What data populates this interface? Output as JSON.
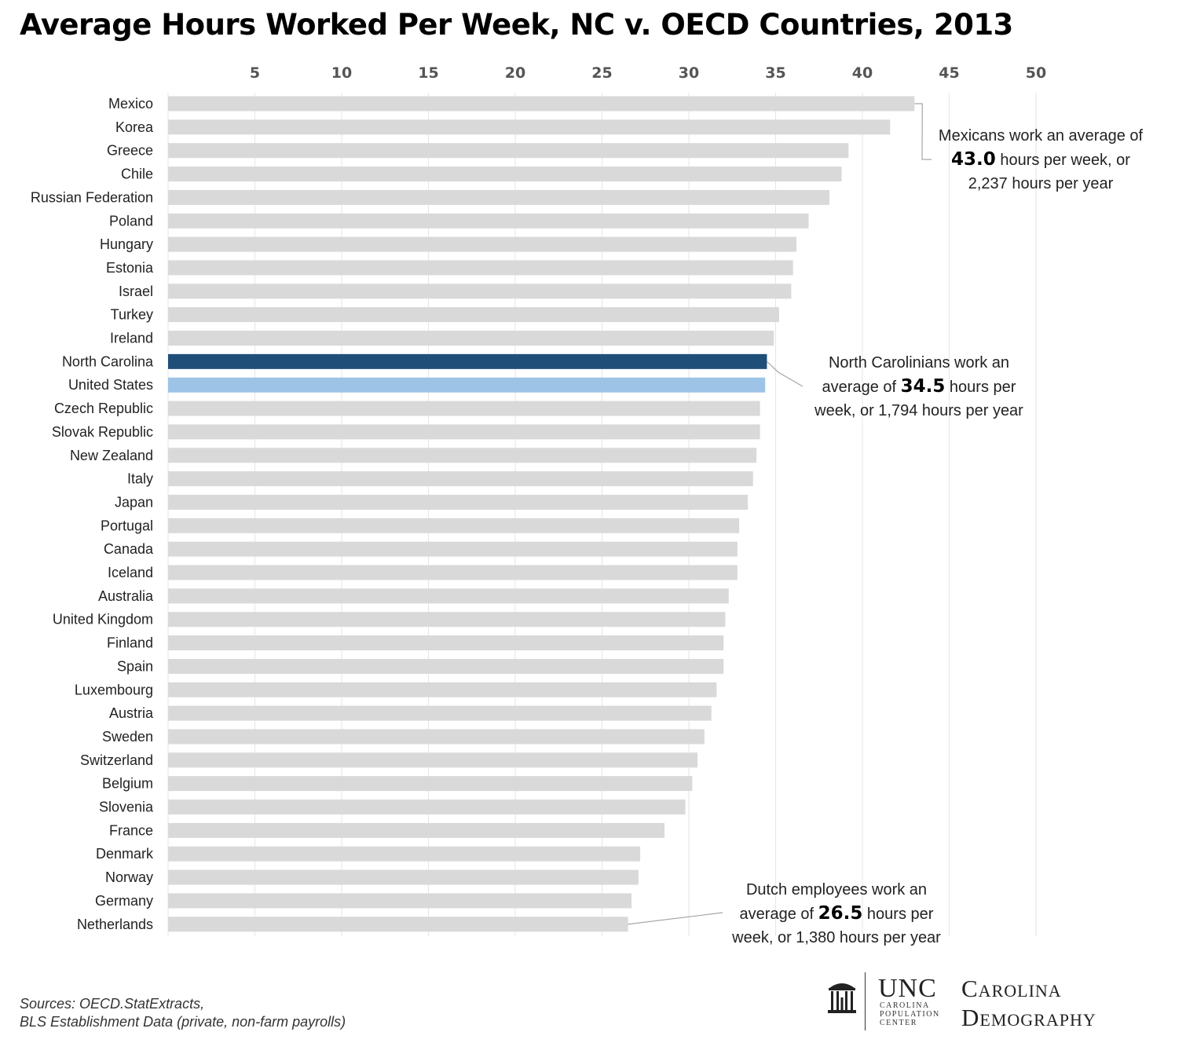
{
  "title": "Average Hours Worked Per Week, NC v. OECD Countries, 2013",
  "chart_data": {
    "type": "bar",
    "orientation": "horizontal",
    "title": "Average Hours Worked Per Week, NC v. OECD Countries, 2013",
    "x_ticks": [
      5,
      10,
      15,
      20,
      25,
      30,
      35,
      40,
      45,
      50
    ],
    "xlim": [
      0,
      50
    ],
    "x_axis_position": "top",
    "grid": "vertical",
    "categories": [
      "Mexico",
      "Korea",
      "Greece",
      "Chile",
      "Russian Federation",
      "Poland",
      "Hungary",
      "Estonia",
      "Israel",
      "Turkey",
      "Ireland",
      "North Carolina",
      "United States",
      "Czech Republic",
      "Slovak Republic",
      "New Zealand",
      "Italy",
      "Japan",
      "Portugal",
      "Canada",
      "Iceland",
      "Australia",
      "United Kingdom",
      "Finland",
      "Spain",
      "Luxembourg",
      "Austria",
      "Sweden",
      "Switzerland",
      "Belgium",
      "Slovenia",
      "France",
      "Denmark",
      "Norway",
      "Germany",
      "Netherlands"
    ],
    "values": [
      43.0,
      41.6,
      39.2,
      38.8,
      38.1,
      36.9,
      36.2,
      36.0,
      35.9,
      35.2,
      34.9,
      34.5,
      34.4,
      34.1,
      34.1,
      33.9,
      33.7,
      33.4,
      32.9,
      32.8,
      32.8,
      32.3,
      32.1,
      32.0,
      32.0,
      31.6,
      31.3,
      30.9,
      30.5,
      30.2,
      29.8,
      28.6,
      27.2,
      27.1,
      26.7,
      26.5
    ],
    "colors": {
      "default": "#d9d9d9",
      "North Carolina": "#1f4e79",
      "United States": "#9dc3e6",
      "grid": "#e6e6e6",
      "leader": "#a6a6a6"
    }
  },
  "annotations": [
    {
      "line1": "Mexicans work an average of",
      "value": "43.0",
      "rest2": " hours per week, or",
      "line3": "2,237 hours per year"
    },
    {
      "line1": "North Carolinians work an",
      "pre2": "average of ",
      "value": "34.5",
      "rest2": " hours per",
      "line3": "week, or 1,794 hours per year"
    },
    {
      "line1": "Dutch employees work an",
      "pre2": "average of ",
      "value": "26.5",
      "rest2": " hours per",
      "line3": "week, or 1,380 hours per year"
    }
  ],
  "sources": {
    "line1": "Sources: OECD.StatExtracts,",
    "line2": "BLS Establishment Data (private, non-farm payrolls)"
  },
  "logo": {
    "unc": "UNC",
    "cpc_lines": [
      "CAROLINA",
      "POPULATION",
      "CENTER"
    ],
    "cd_line1": "Carolina",
    "cd_line2": "Demography"
  }
}
